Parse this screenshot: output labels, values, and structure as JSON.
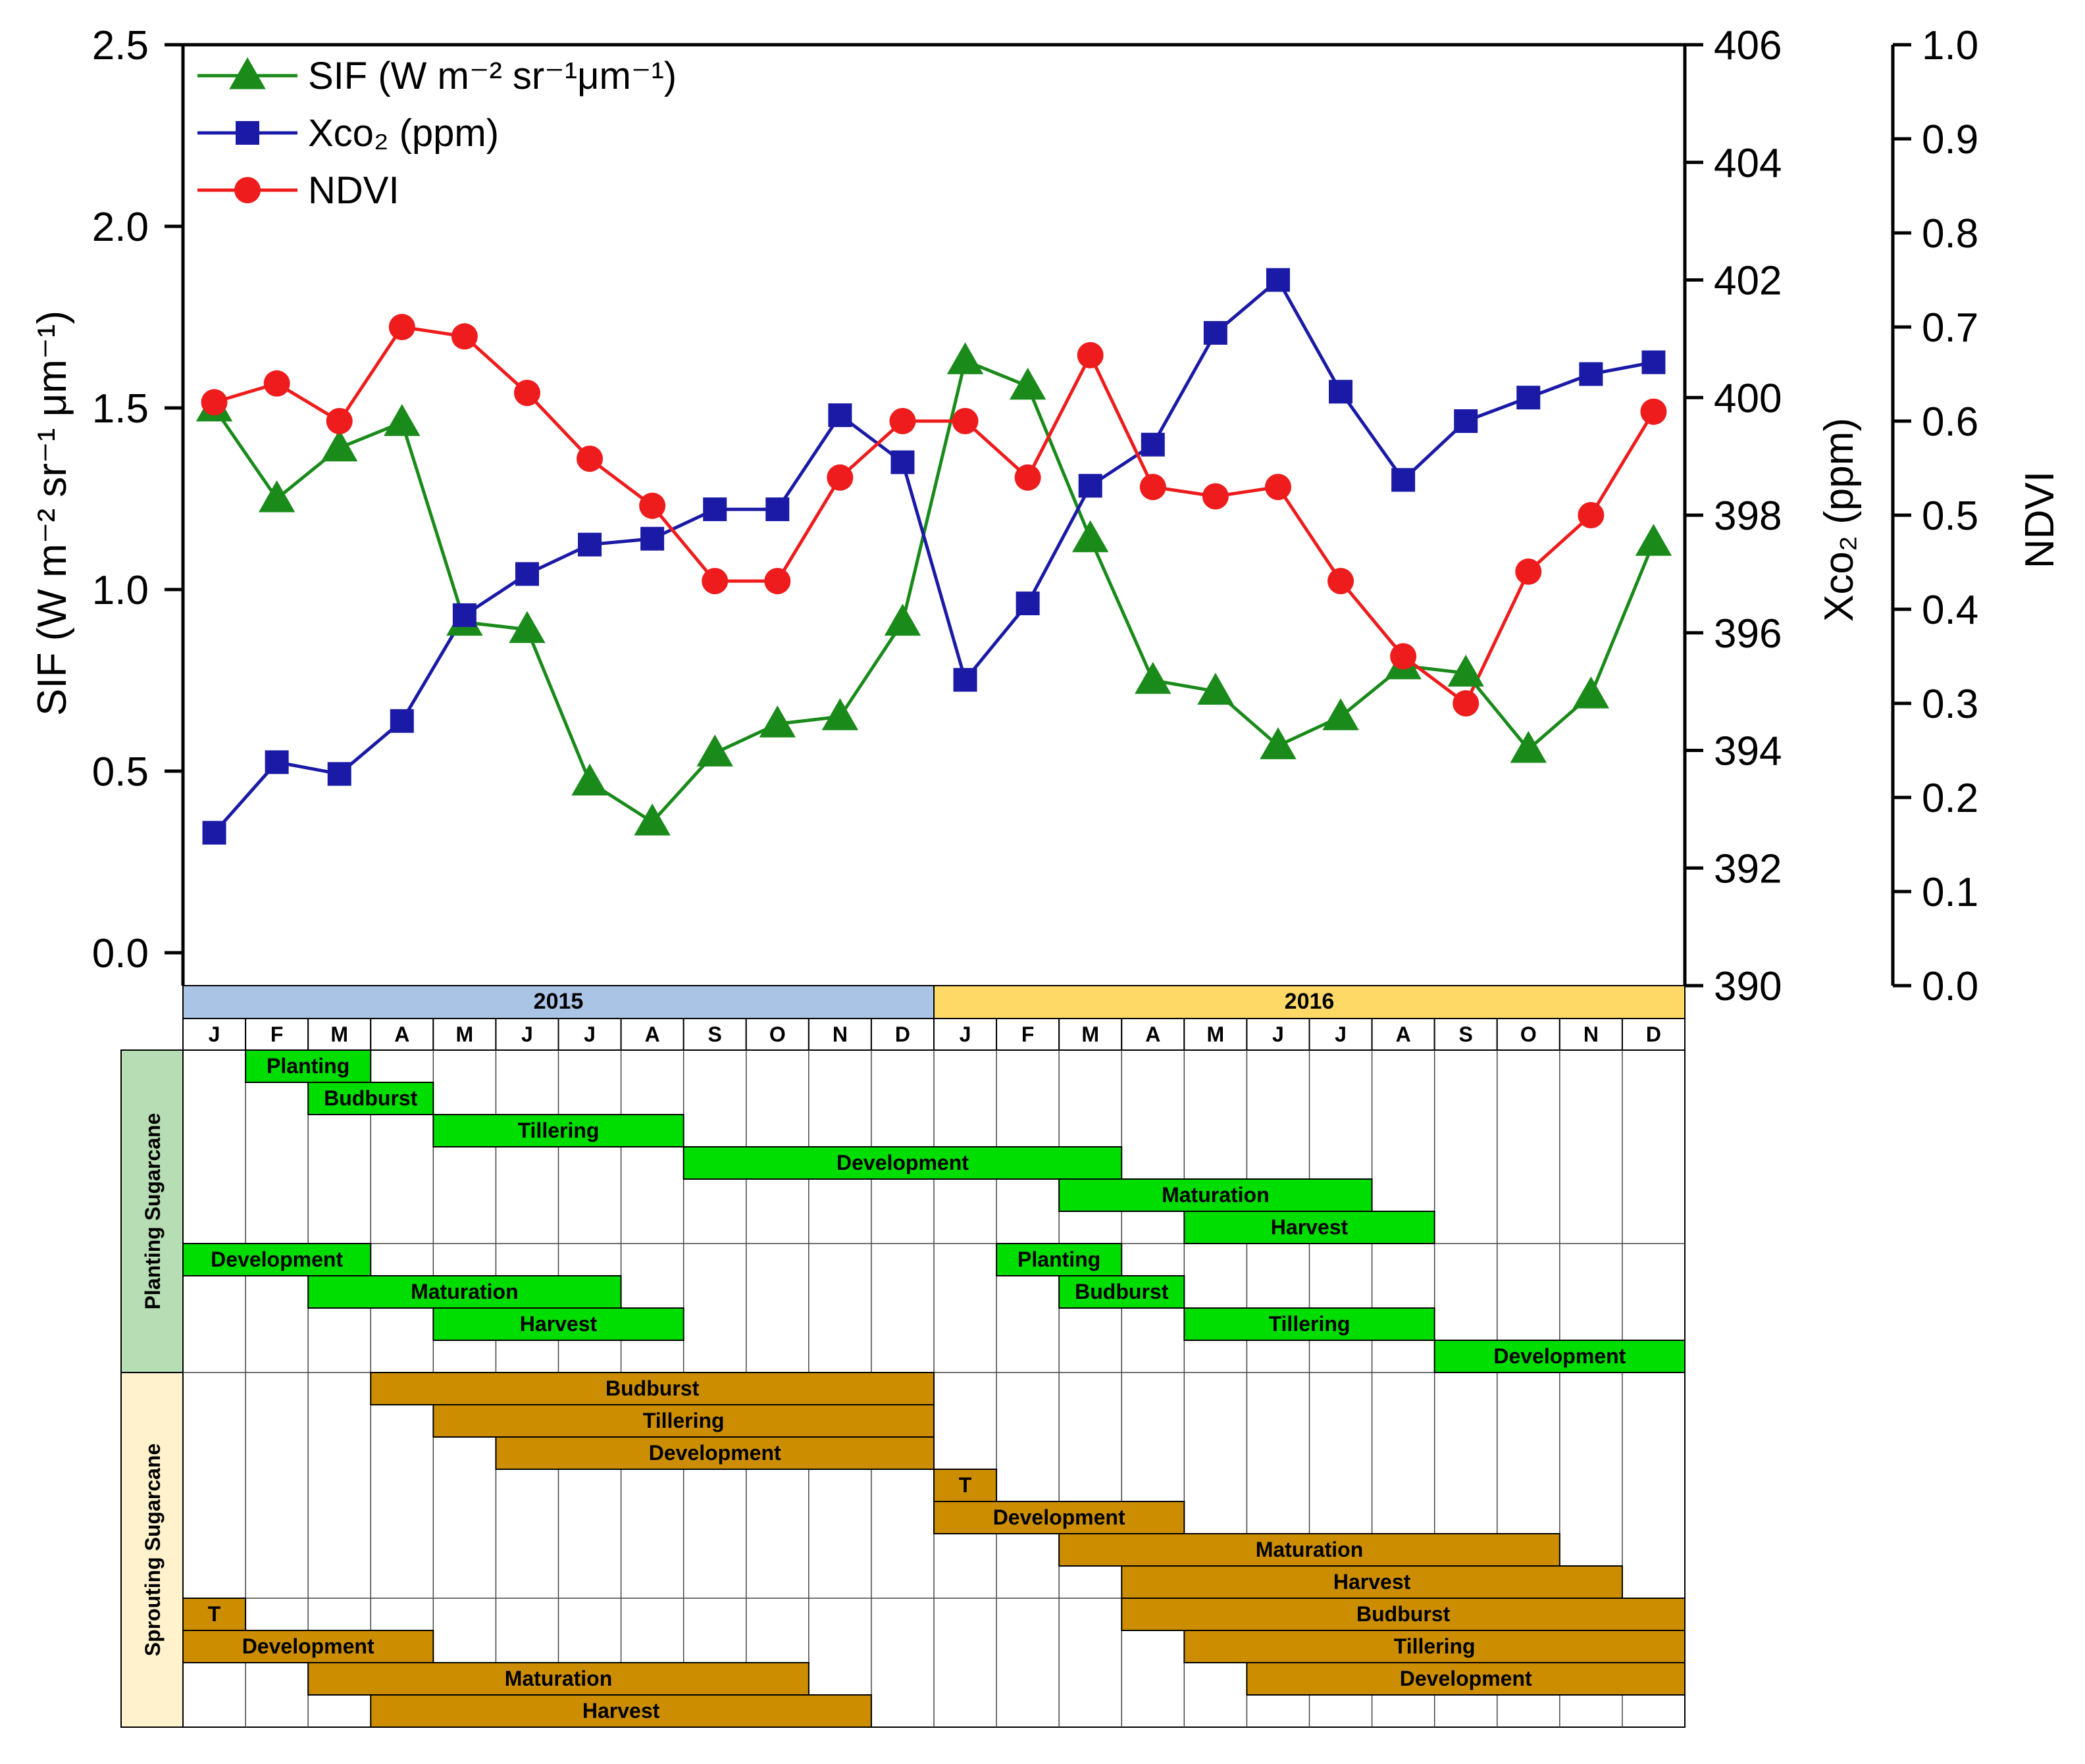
{
  "chart_data": {
    "type": "line",
    "months": [
      "J",
      "F",
      "M",
      "A",
      "M",
      "J",
      "J",
      "A",
      "S",
      "O",
      "N",
      "D",
      "J",
      "F",
      "M",
      "A",
      "M",
      "J",
      "J",
      "A",
      "S",
      "O",
      "N",
      "D"
    ],
    "years": [
      "2015",
      "2016"
    ],
    "series": [
      {
        "name": "SIF (W m⁻² sr⁻¹μm⁻¹)",
        "axis": "left",
        "color": "#1a8a1a",
        "marker": "triangle",
        "values": [
          1.5,
          1.25,
          1.39,
          1.46,
          0.91,
          0.89,
          0.47,
          0.36,
          0.55,
          0.63,
          0.65,
          0.91,
          1.63,
          1.56,
          1.14,
          0.75,
          0.72,
          0.57,
          0.65,
          0.79,
          0.77,
          0.56,
          0.71,
          1.13
        ]
      },
      {
        "name": "Xco₂ (ppm)",
        "axis": "right",
        "color": "#1a1aa6",
        "marker": "square",
        "values": [
          392.6,
          393.8,
          393.6,
          394.5,
          396.3,
          397.0,
          397.5,
          397.6,
          398.1,
          398.1,
          399.7,
          398.9,
          395.2,
          396.5,
          398.5,
          399.2,
          401.1,
          402.0,
          400.1,
          398.6,
          399.6,
          400.0,
          400.4,
          400.6
        ]
      },
      {
        "name": "NDVI",
        "axis": "right2",
        "color": "#ee1c1c",
        "marker": "circle",
        "values": [
          0.62,
          0.64,
          0.6,
          0.7,
          0.69,
          0.63,
          0.56,
          0.51,
          0.43,
          0.43,
          0.54,
          0.6,
          0.6,
          0.54,
          0.67,
          0.53,
          0.52,
          0.53,
          0.43,
          0.35,
          0.3,
          0.44,
          0.5,
          0.61
        ]
      }
    ],
    "axes": {
      "left": {
        "label": "SIF (W m⁻² sr⁻¹ μm⁻¹)",
        "ylim": [
          0.0,
          2.5
        ],
        "ticks": [
          "0.0",
          "0.5",
          "1.0",
          "1.5",
          "2.0",
          "2.5"
        ]
      },
      "right": {
        "label": "Xco₂ (ppm)",
        "ylim": [
          390,
          406
        ],
        "ticks": [
          "390",
          "392",
          "394",
          "396",
          "398",
          "400",
          "402",
          "404",
          "406"
        ]
      },
      "right2": {
        "label": "NDVI",
        "ylim": [
          0.0,
          1.0
        ],
        "ticks": [
          "0.0",
          "0.1",
          "0.2",
          "0.3",
          "0.4",
          "0.5",
          "0.6",
          "0.7",
          "0.8",
          "0.9",
          "1.0"
        ]
      }
    },
    "legend_position": "top-left",
    "year_colors": {
      "2015": "#aac4e6",
      "2016": "#ffd966"
    },
    "crop_calendar": {
      "groups": [
        {
          "label": "Planting Sugarcane",
          "color": "#b6ddb3",
          "bar_color": "#00dd00",
          "row_start": 0,
          "row_count": 10
        },
        {
          "label": "Sprouting Sugarcane",
          "color": "#fff2cc",
          "bar_color": "#cc8e00",
          "row_start": 10,
          "row_count": 11
        }
      ],
      "bars": [
        {
          "row": 0,
          "start": 1,
          "end": 3,
          "label": "Planting",
          "group": 0
        },
        {
          "row": 1,
          "start": 2,
          "end": 4,
          "label": "Budburst",
          "group": 0
        },
        {
          "row": 2,
          "start": 4,
          "end": 8,
          "label": "Tillering",
          "group": 0
        },
        {
          "row": 3,
          "start": 8,
          "end": 15,
          "label": "Development",
          "group": 0
        },
        {
          "row": 4,
          "start": 14,
          "end": 19,
          "label": "Maturation",
          "group": 0
        },
        {
          "row": 5,
          "start": 16,
          "end": 20,
          "label": "Harvest",
          "group": 0
        },
        {
          "row": 6,
          "start": 0,
          "end": 3,
          "label": "Development",
          "group": 0
        },
        {
          "row": 6,
          "start": 13,
          "end": 15,
          "label": "Planting",
          "group": 0
        },
        {
          "row": 7,
          "start": 2,
          "end": 7,
          "label": "Maturation",
          "group": 0
        },
        {
          "row": 7,
          "start": 14,
          "end": 16,
          "label": "Budburst",
          "group": 0
        },
        {
          "row": 8,
          "start": 4,
          "end": 8,
          "label": "Harvest",
          "group": 0
        },
        {
          "row": 8,
          "start": 16,
          "end": 20,
          "label": "Tillering",
          "group": 0
        },
        {
          "row": 9,
          "start": 20,
          "end": 24,
          "label": "Development",
          "group": 0
        },
        {
          "row": 10,
          "start": 3,
          "end": 12,
          "label": "Budburst",
          "group": 1
        },
        {
          "row": 11,
          "start": 4,
          "end": 12,
          "label": "Tillering",
          "group": 1
        },
        {
          "row": 12,
          "start": 5,
          "end": 12,
          "label": "Development",
          "group": 1
        },
        {
          "row": 13,
          "start": 12,
          "end": 13,
          "label": "T",
          "group": 1
        },
        {
          "row": 14,
          "start": 12,
          "end": 16,
          "label": "Development",
          "group": 1
        },
        {
          "row": 15,
          "start": 14,
          "end": 22,
          "label": "Maturation",
          "group": 1
        },
        {
          "row": 16,
          "start": 15,
          "end": 23,
          "label": "Harvest",
          "group": 1
        },
        {
          "row": 17,
          "start": 0,
          "end": 1,
          "label": "T",
          "group": 1
        },
        {
          "row": 17,
          "start": 15,
          "end": 24,
          "label": "Budburst",
          "group": 1
        },
        {
          "row": 18,
          "start": 0,
          "end": 4,
          "label": "Development",
          "group": 1
        },
        {
          "row": 18,
          "start": 16,
          "end": 24,
          "label": "Tillering",
          "group": 1
        },
        {
          "row": 19,
          "start": 2,
          "end": 10,
          "label": "Maturation",
          "group": 1
        },
        {
          "row": 19,
          "start": 17,
          "end": 24,
          "label": "Development",
          "group": 1
        },
        {
          "row": 20,
          "start": 3,
          "end": 11,
          "label": "Harvest",
          "group": 1
        }
      ]
    }
  }
}
